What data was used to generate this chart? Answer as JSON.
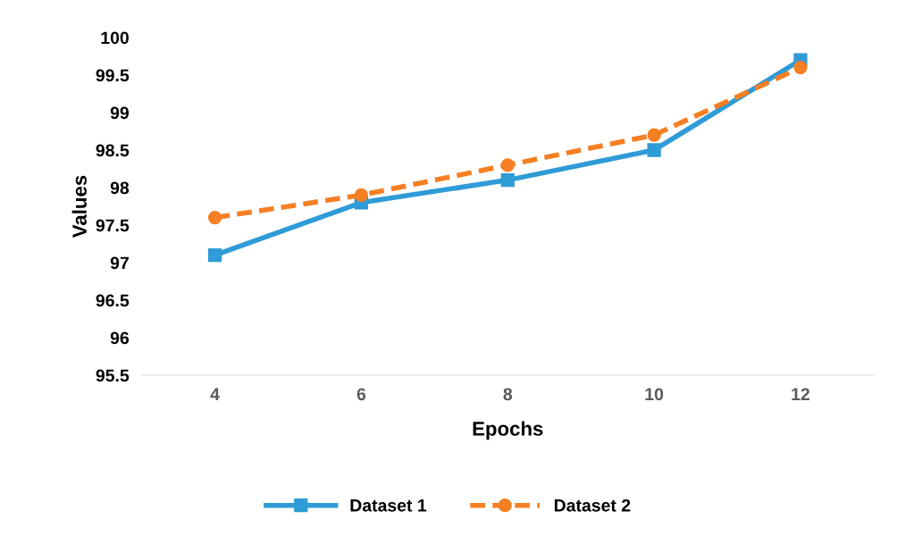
{
  "chart_data": {
    "type": "line",
    "xlabel": "Epochs",
    "ylabel": "Values",
    "categories": [
      "4",
      "6",
      "8",
      "10",
      "12"
    ],
    "series": [
      {
        "name": "Dataset 1",
        "color": "#2f9bd7",
        "values": [
          97.1,
          97.8,
          98.1,
          98.5,
          99.7
        ],
        "marker": "square",
        "line_style": "solid"
      },
      {
        "name": "Dataset 2",
        "color": "#f57f22",
        "values": [
          97.6,
          97.9,
          98.3,
          98.7,
          99.6
        ],
        "marker": "circle",
        "line_style": "dashed"
      }
    ],
    "ylim": [
      95.5,
      100
    ],
    "yticks": [
      95.5,
      96,
      96.5,
      97,
      97.5,
      98,
      98.5,
      99,
      99.5,
      100
    ],
    "grid": false,
    "legend": "bottom"
  }
}
